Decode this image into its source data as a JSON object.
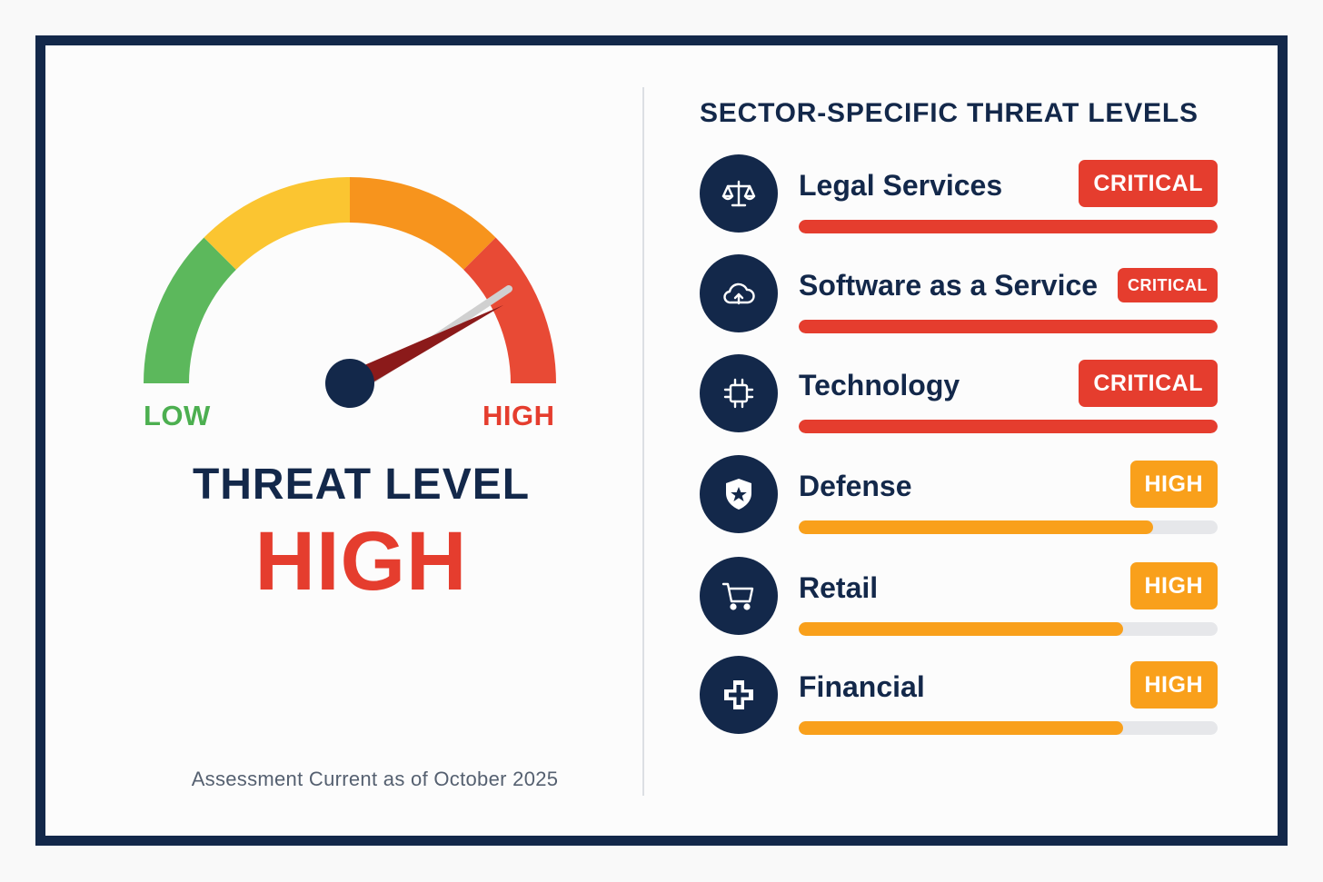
{
  "colors": {
    "frame": "#13284a",
    "navy": "#13284a",
    "critical": "#e53d2e",
    "high": "#f9a01b",
    "gauge_segments": [
      "#5cb85c",
      "#fbc531",
      "#f7941d",
      "#e84a35"
    ],
    "needle": "#8b1a1a"
  },
  "gauge": {
    "low_label": "LOW",
    "high_label": "HIGH",
    "needle_level": 0.85
  },
  "threat": {
    "title": "THREAT LEVEL",
    "value": "HIGH"
  },
  "footnote": "Assessment Current as of October 2025",
  "sectors": {
    "heading": "SECTOR-SPECIFIC THREAT LEVELS",
    "items": [
      {
        "name": "Legal Services",
        "level": "CRITICAL",
        "fill": 1.0,
        "icon": "scales-icon"
      },
      {
        "name": "Software as a Service",
        "level": "CRITICAL",
        "fill": 1.0,
        "icon": "cloud-upload-icon"
      },
      {
        "name": "Technology",
        "level": "CRITICAL",
        "fill": 1.0,
        "icon": "chip-icon"
      },
      {
        "name": "Defense",
        "level": "HIGH",
        "fill": 0.845,
        "icon": "shield-star-icon"
      },
      {
        "name": "Retail",
        "level": "HIGH",
        "fill": 0.775,
        "icon": "shopping-cart-icon"
      },
      {
        "name": "Financial",
        "level": "HIGH",
        "fill": 0.775,
        "icon": "medical-cross-icon"
      }
    ]
  }
}
